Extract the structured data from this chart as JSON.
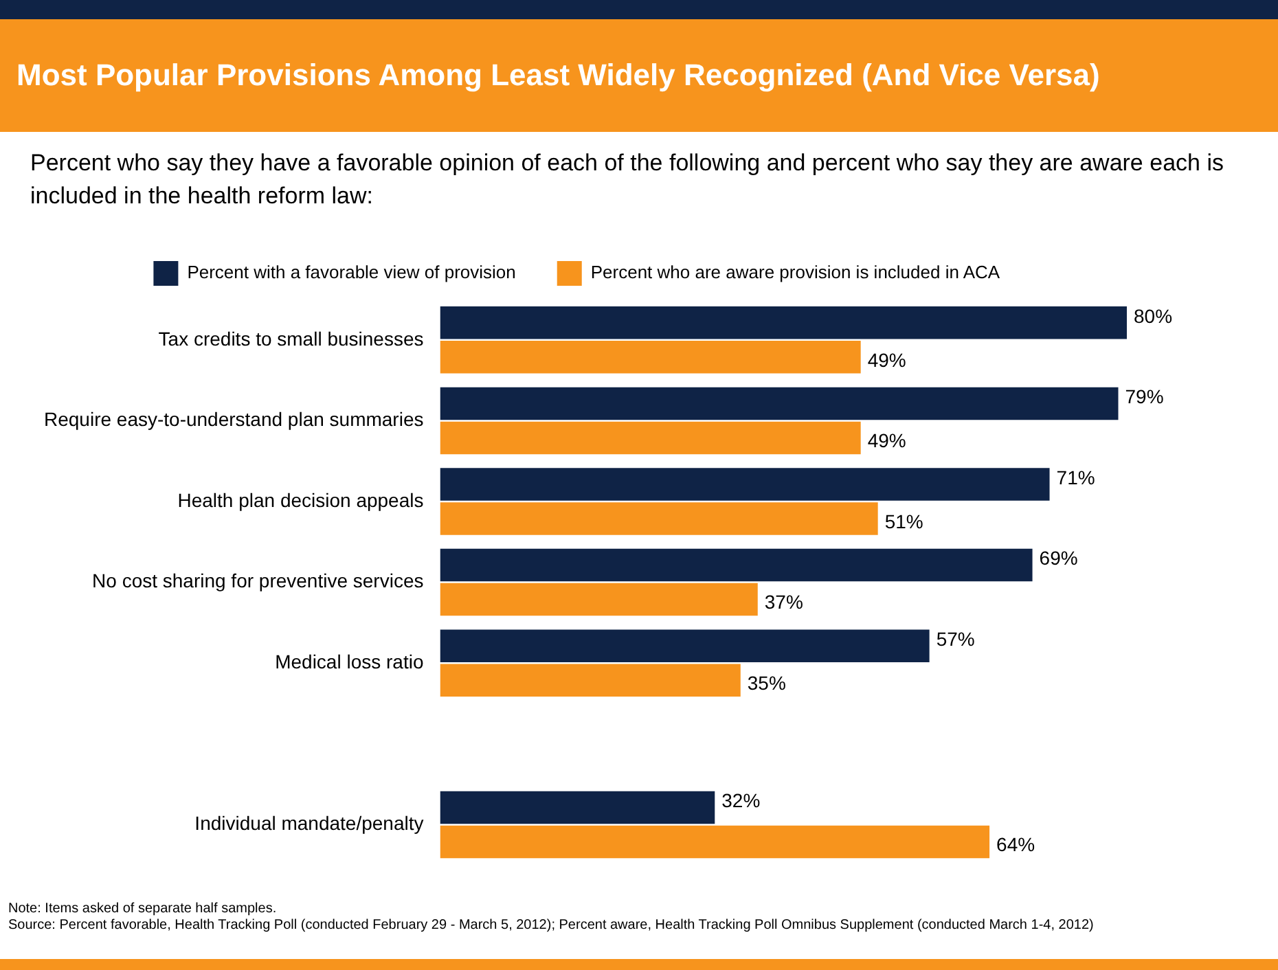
{
  "chart_data": {
    "type": "bar",
    "orientation": "horizontal",
    "title": "Most Popular Provisions Among Least Widely Recognized (And Vice Versa)",
    "subtitle": "Percent who say they have a favorable opinion of each of the following and percent who say they are aware each is included in the health reform law:",
    "categories": [
      "Tax credits to small businesses",
      "Require easy-to-understand plan summaries",
      "Health plan decision appeals",
      "No cost sharing for preventive services",
      "Medical loss ratio",
      null,
      "Individual mandate/penalty"
    ],
    "series": [
      {
        "name": "Percent with a favorable view of provision",
        "color": "#0f2346",
        "values": [
          80,
          79,
          71,
          69,
          57,
          null,
          32
        ],
        "value_labels": [
          "80%",
          "79%",
          "71%",
          "69%",
          "57%",
          null,
          "32%"
        ]
      },
      {
        "name": "Percent who are aware provision is included in ACA",
        "color": "#f7941d",
        "values": [
          49,
          49,
          51,
          37,
          35,
          null,
          64
        ],
        "value_labels": [
          "49%",
          "49%",
          "51%",
          "37%",
          "35%",
          null,
          "64%"
        ]
      }
    ],
    "legend": "top",
    "grid": false,
    "annotations": [
      "Note: Items asked of separate half samples.",
      "Source: Percent favorable, Health Tracking Poll (conducted February 29 - March 5, 2012); Percent aware, Health Tracking Poll Omnibus Supplement (conducted March 1-4, 2012)"
    ]
  }
}
